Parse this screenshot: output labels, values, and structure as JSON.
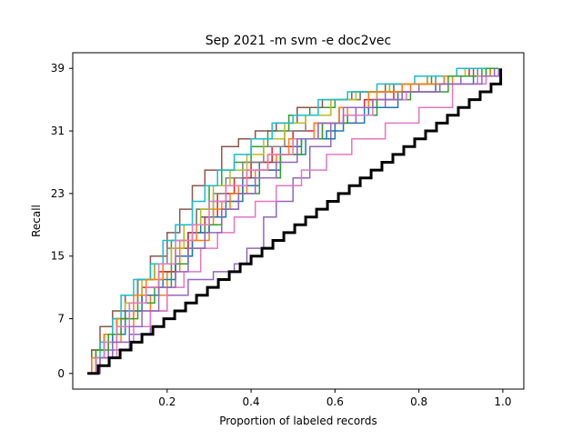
{
  "chart_data": {
    "type": "line",
    "title": "Sep 2021 -m svm -e doc2vec",
    "xlabel": "Proportion of labeled records",
    "ylabel": "Recall",
    "xlim": [
      -0.025,
      1.05
    ],
    "ylim": [
      -2,
      41
    ],
    "xticks": [
      0.2,
      0.4,
      0.6,
      0.8,
      1.0
    ],
    "xtick_labels": [
      "0.2",
      "0.4",
      "0.6",
      "0.8",
      "1.0"
    ],
    "yticks": [
      0,
      7,
      15,
      23,
      31,
      39
    ],
    "ytick_labels": [
      "0",
      "7",
      "15",
      "23",
      "31",
      "39"
    ],
    "grid": false,
    "legend": "none",
    "line_style": "step",
    "series": [
      {
        "color": "#1f77b4",
        "x": [
          0.01,
          0.03,
          0.05,
          0.08,
          0.11,
          0.15,
          0.19,
          0.22,
          0.25,
          0.28,
          0.31,
          0.34,
          0.38,
          0.42,
          0.47,
          0.52,
          0.58,
          0.62,
          0.68,
          0.76,
          0.86,
          0.97,
          0.99
        ],
        "y": [
          0,
          3,
          5,
          7,
          9,
          11,
          13,
          15,
          18,
          20,
          22,
          23,
          25,
          27,
          29,
          30,
          31,
          33,
          35,
          37,
          38,
          39,
          39
        ]
      },
      {
        "color": "#ff7f0e",
        "x": [
          0.01,
          0.03,
          0.06,
          0.09,
          0.12,
          0.16,
          0.2,
          0.23,
          0.26,
          0.3,
          0.33,
          0.37,
          0.41,
          0.46,
          0.51,
          0.57,
          0.63,
          0.7,
          0.78,
          0.88,
          0.98,
          0.99
        ],
        "y": [
          0,
          2,
          4,
          6,
          8,
          10,
          13,
          15,
          17,
          19,
          22,
          24,
          26,
          28,
          30,
          32,
          34,
          36,
          37,
          38,
          39,
          39
        ]
      },
      {
        "color": "#2ca02c",
        "x": [
          0.01,
          0.02,
          0.05,
          0.07,
          0.1,
          0.13,
          0.17,
          0.21,
          0.24,
          0.27,
          0.3,
          0.33,
          0.36,
          0.4,
          0.44,
          0.49,
          0.54,
          0.6,
          0.66,
          0.73,
          0.83,
          0.95,
          0.99
        ],
        "y": [
          0,
          3,
          5,
          7,
          9,
          12,
          14,
          17,
          19,
          21,
          24,
          26,
          27,
          29,
          31,
          33,
          34,
          35,
          36,
          37,
          38,
          39,
          39
        ]
      },
      {
        "color": "#d62728",
        "x": [
          0.01,
          0.03,
          0.06,
          0.08,
          0.11,
          0.14,
          0.18,
          0.22,
          0.25,
          0.29,
          0.32,
          0.36,
          0.4,
          0.45,
          0.5,
          0.55,
          0.61,
          0.67,
          0.74,
          0.82,
          0.92,
          0.99
        ],
        "y": [
          0,
          2,
          4,
          7,
          9,
          11,
          13,
          16,
          18,
          20,
          23,
          25,
          27,
          29,
          31,
          32,
          34,
          35,
          37,
          38,
          39,
          39
        ]
      },
      {
        "color": "#9467bd",
        "x": [
          0.01,
          0.03,
          0.06,
          0.11,
          0.16,
          0.2,
          0.25,
          0.31,
          0.36,
          0.39,
          0.43,
          0.46,
          0.5,
          0.54,
          0.59,
          0.65,
          0.72,
          0.8,
          0.9,
          0.98,
          0.99
        ],
        "y": [
          0,
          1,
          3,
          5,
          8,
          10,
          12,
          13,
          14,
          16,
          20,
          22,
          25,
          29,
          32,
          34,
          36,
          37,
          38,
          39,
          39
        ]
      },
      {
        "color": "#8c564b",
        "x": [
          0.01,
          0.02,
          0.04,
          0.07,
          0.1,
          0.13,
          0.16,
          0.2,
          0.23,
          0.26,
          0.29,
          0.33,
          0.37,
          0.41,
          0.46,
          0.51,
          0.57,
          0.64,
          0.72,
          0.82,
          0.93,
          0.99
        ],
        "y": [
          0,
          3,
          6,
          8,
          10,
          12,
          15,
          18,
          21,
          24,
          26,
          29,
          30,
          31,
          32,
          34,
          35,
          36,
          37,
          38,
          39,
          39
        ]
      },
      {
        "color": "#e377c2",
        "x": [
          0.01,
          0.04,
          0.08,
          0.12,
          0.16,
          0.2,
          0.24,
          0.28,
          0.32,
          0.36,
          0.41,
          0.46,
          0.52,
          0.58,
          0.64,
          0.72,
          0.8,
          0.88,
          0.96,
          0.99
        ],
        "y": [
          0,
          2,
          4,
          6,
          8,
          11,
          13,
          16,
          18,
          20,
          22,
          24,
          26,
          28,
          30,
          32,
          34,
          37,
          39,
          39
        ]
      },
      {
        "color": "#7f7f7f",
        "x": [
          0.01,
          0.03,
          0.05,
          0.08,
          0.1,
          0.13,
          0.17,
          0.2,
          0.24,
          0.27,
          0.31,
          0.34,
          0.38,
          0.43,
          0.48,
          0.53,
          0.59,
          0.66,
          0.74,
          0.84,
          0.94,
          0.99
        ],
        "y": [
          0,
          2,
          5,
          7,
          9,
          12,
          14,
          16,
          19,
          21,
          23,
          25,
          27,
          29,
          31,
          33,
          35,
          36,
          37,
          38,
          39,
          39
        ]
      },
      {
        "color": "#bcbd22",
        "x": [
          0.01,
          0.03,
          0.05,
          0.07,
          0.1,
          0.14,
          0.17,
          0.21,
          0.24,
          0.28,
          0.31,
          0.35,
          0.39,
          0.43,
          0.48,
          0.53,
          0.59,
          0.65,
          0.73,
          0.82,
          0.91,
          0.99
        ],
        "y": [
          0,
          3,
          5,
          7,
          9,
          12,
          14,
          16,
          19,
          21,
          24,
          26,
          28,
          30,
          32,
          33,
          35,
          36,
          37,
          38,
          39,
          39
        ]
      },
      {
        "color": "#17becf",
        "x": [
          0.01,
          0.02,
          0.04,
          0.07,
          0.09,
          0.12,
          0.16,
          0.19,
          0.22,
          0.26,
          0.29,
          0.32,
          0.36,
          0.4,
          0.45,
          0.5,
          0.56,
          0.63,
          0.7,
          0.79,
          0.89,
          0.99
        ],
        "y": [
          0,
          2,
          4,
          7,
          10,
          12,
          14,
          17,
          19,
          22,
          24,
          26,
          28,
          30,
          32,
          33,
          35,
          36,
          37,
          38,
          39,
          39
        ]
      },
      {
        "color": "#1f77b4",
        "x": [
          0.01,
          0.03,
          0.07,
          0.1,
          0.14,
          0.18,
          0.22,
          0.26,
          0.3,
          0.34,
          0.38,
          0.42,
          0.47,
          0.53,
          0.6,
          0.67,
          0.75,
          0.84,
          0.93,
          0.99
        ],
        "y": [
          0,
          2,
          5,
          8,
          10,
          12,
          15,
          18,
          20,
          22,
          24,
          26,
          28,
          30,
          32,
          34,
          36,
          37,
          38,
          39
        ]
      },
      {
        "color": "#ff7f0e",
        "x": [
          0.01,
          0.02,
          0.05,
          0.08,
          0.12,
          0.15,
          0.19,
          0.23,
          0.27,
          0.31,
          0.35,
          0.39,
          0.44,
          0.49,
          0.55,
          0.61,
          0.68,
          0.76,
          0.86,
          0.97,
          0.99
        ],
        "y": [
          0,
          2,
          5,
          7,
          10,
          12,
          14,
          17,
          19,
          21,
          23,
          26,
          28,
          30,
          32,
          34,
          36,
          37,
          38,
          39,
          39
        ]
      },
      {
        "color": "#2ca02c",
        "x": [
          0.01,
          0.03,
          0.06,
          0.09,
          0.13,
          0.17,
          0.21,
          0.25,
          0.29,
          0.33,
          0.37,
          0.42,
          0.47,
          0.52,
          0.57,
          0.63,
          0.7,
          0.78,
          0.87,
          0.96,
          0.99
        ],
        "y": [
          0,
          3,
          5,
          7,
          9,
          11,
          14,
          16,
          19,
          21,
          23,
          25,
          28,
          30,
          32,
          33,
          35,
          36,
          38,
          39,
          39
        ]
      },
      {
        "color": "#e377c2",
        "x": [
          0.01,
          0.03,
          0.05,
          0.08,
          0.11,
          0.15,
          0.18,
          0.22,
          0.26,
          0.3,
          0.34,
          0.39,
          0.44,
          0.5,
          0.56,
          0.62,
          0.69,
          0.77,
          0.85,
          0.94,
          0.99
        ],
        "y": [
          0,
          2,
          4,
          6,
          9,
          11,
          14,
          17,
          19,
          22,
          24,
          26,
          28,
          30,
          32,
          33,
          35,
          36,
          37,
          38,
          39
        ]
      },
      {
        "color": "#9467bd",
        "x": [
          0.01,
          0.04,
          0.07,
          0.11,
          0.14,
          0.18,
          0.22,
          0.25,
          0.29,
          0.33,
          0.37,
          0.41,
          0.46,
          0.51,
          0.56,
          0.62,
          0.69,
          0.76,
          0.85,
          0.95,
          0.99
        ],
        "y": [
          0,
          2,
          4,
          6,
          8,
          11,
          13,
          16,
          18,
          21,
          23,
          25,
          27,
          30,
          32,
          34,
          35,
          36,
          37,
          38,
          39
        ]
      },
      {
        "color": "#000000",
        "emphasis": true,
        "x": [
          0.01,
          0.036,
          0.062,
          0.088,
          0.114,
          0.14,
          0.166,
          0.192,
          0.218,
          0.244,
          0.27,
          0.296,
          0.322,
          0.348,
          0.374,
          0.4,
          0.426,
          0.452,
          0.478,
          0.504,
          0.53,
          0.556,
          0.582,
          0.608,
          0.634,
          0.66,
          0.686,
          0.712,
          0.738,
          0.764,
          0.79,
          0.816,
          0.842,
          0.868,
          0.894,
          0.92,
          0.946,
          0.972,
          0.995
        ],
        "y": [
          0,
          1,
          2,
          3,
          4,
          5,
          6,
          7,
          8,
          9,
          10,
          11,
          12,
          13,
          14,
          15,
          16,
          17,
          18,
          19,
          20,
          21,
          22,
          23,
          24,
          25,
          26,
          27,
          28,
          29,
          30,
          31,
          32,
          33,
          34,
          35,
          36,
          37,
          39
        ]
      }
    ]
  }
}
